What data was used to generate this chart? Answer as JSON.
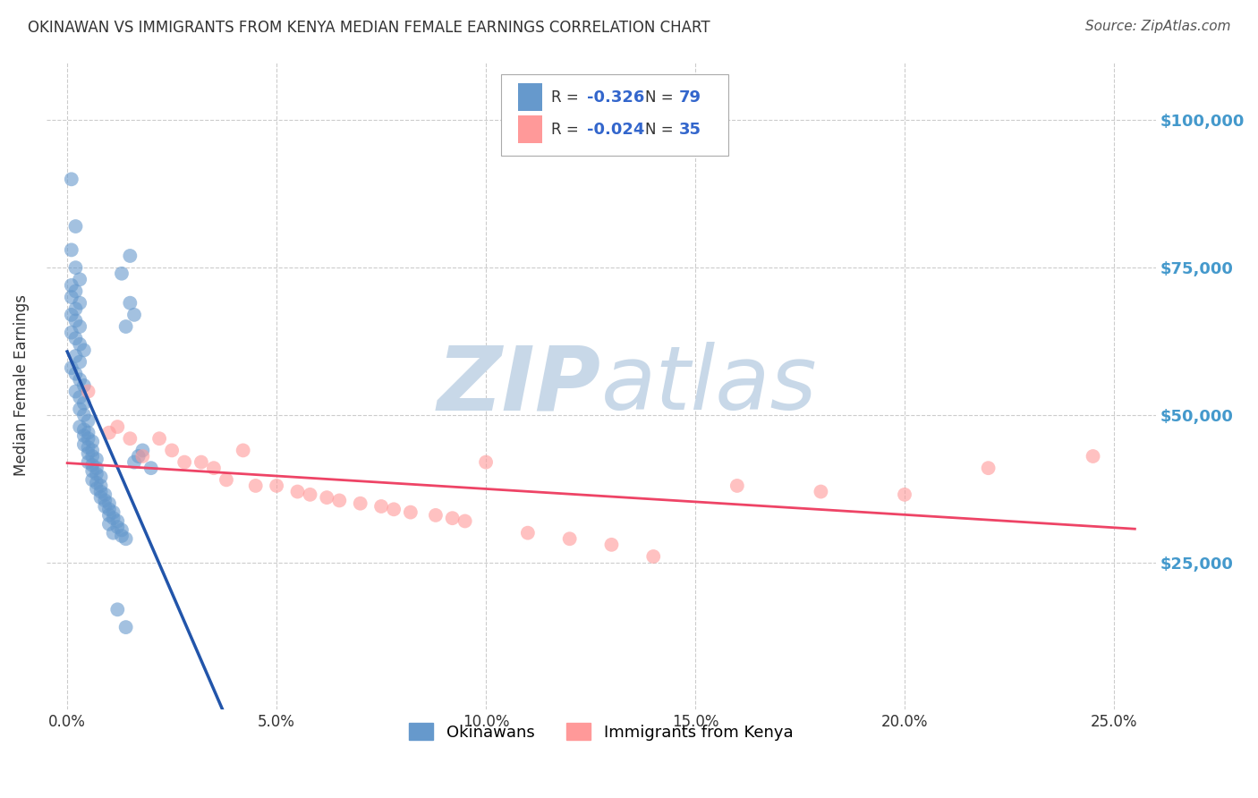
{
  "title": "OKINAWAN VS IMMIGRANTS FROM KENYA MEDIAN FEMALE EARNINGS CORRELATION CHART",
  "source": "Source: ZipAtlas.com",
  "ylabel": "Median Female Earnings",
  "xlabel_ticks": [
    "0.0%",
    "5.0%",
    "10.0%",
    "15.0%",
    "20.0%",
    "25.0%"
  ],
  "xlabel_vals": [
    0.0,
    0.05,
    0.1,
    0.15,
    0.2,
    0.25
  ],
  "ytick_labels": [
    "$25,000",
    "$50,000",
    "$75,000",
    "$100,000"
  ],
  "ytick_vals": [
    25000,
    50000,
    75000,
    100000
  ],
  "ylim": [
    0,
    110000
  ],
  "xlim": [
    -0.005,
    0.26
  ],
  "legend_label1": "Okinawans",
  "legend_label2": "Immigrants from Kenya",
  "r1": "-0.326",
  "n1": "79",
  "r2": "-0.024",
  "n2": "35",
  "blue_color": "#6699cc",
  "pink_color": "#ff9999",
  "blue_line_color": "#2255aa",
  "pink_line_color": "#ee4466",
  "watermark_zip": "ZIP",
  "watermark_atlas": "atlas",
  "watermark_color": "#c8d8e8",
  "background_color": "#ffffff",
  "title_color": "#333333",
  "source_color": "#555555",
  "axis_label_color": "#333333",
  "ytick_color": "#4499cc",
  "xtick_color": "#333333",
  "grid_color": "#cccccc",
  "okinawan_x": [
    0.001,
    0.002,
    0.001,
    0.002,
    0.003,
    0.001,
    0.002,
    0.001,
    0.003,
    0.002,
    0.001,
    0.002,
    0.003,
    0.001,
    0.002,
    0.003,
    0.004,
    0.002,
    0.003,
    0.001,
    0.002,
    0.003,
    0.004,
    0.002,
    0.003,
    0.004,
    0.003,
    0.004,
    0.005,
    0.003,
    0.004,
    0.005,
    0.004,
    0.005,
    0.006,
    0.004,
    0.005,
    0.006,
    0.005,
    0.006,
    0.007,
    0.005,
    0.006,
    0.007,
    0.006,
    0.007,
    0.008,
    0.006,
    0.007,
    0.008,
    0.007,
    0.008,
    0.009,
    0.008,
    0.009,
    0.01,
    0.009,
    0.01,
    0.011,
    0.01,
    0.011,
    0.012,
    0.01,
    0.012,
    0.013,
    0.011,
    0.013,
    0.014,
    0.012,
    0.014,
    0.015,
    0.013,
    0.015,
    0.016,
    0.014,
    0.017,
    0.016,
    0.018,
    0.02
  ],
  "okinawan_y": [
    90000,
    82000,
    78000,
    75000,
    73000,
    72000,
    71000,
    70000,
    69000,
    68000,
    67000,
    66000,
    65000,
    64000,
    63000,
    62000,
    61000,
    60000,
    59000,
    58000,
    57000,
    56000,
    55000,
    54000,
    53000,
    52000,
    51000,
    50000,
    49000,
    48000,
    47500,
    47000,
    46500,
    46000,
    45500,
    45000,
    44500,
    44000,
    43500,
    43000,
    42500,
    42000,
    41500,
    41000,
    40500,
    40000,
    39500,
    39000,
    38500,
    38000,
    37500,
    37000,
    36500,
    36000,
    35500,
    35000,
    34500,
    34000,
    33500,
    33000,
    32500,
    32000,
    31500,
    31000,
    30500,
    30000,
    29500,
    29000,
    17000,
    14000,
    77000,
    74000,
    69000,
    67000,
    65000,
    43000,
    42000,
    44000,
    41000
  ],
  "kenya_x": [
    0.005,
    0.01,
    0.015,
    0.012,
    0.018,
    0.022,
    0.025,
    0.028,
    0.032,
    0.035,
    0.038,
    0.042,
    0.045,
    0.05,
    0.055,
    0.058,
    0.062,
    0.065,
    0.07,
    0.075,
    0.078,
    0.082,
    0.088,
    0.092,
    0.095,
    0.1,
    0.11,
    0.12,
    0.13,
    0.14,
    0.16,
    0.18,
    0.2,
    0.22,
    0.245
  ],
  "kenya_y": [
    54000,
    47000,
    46000,
    48000,
    43000,
    46000,
    44000,
    42000,
    42000,
    41000,
    39000,
    44000,
    38000,
    38000,
    37000,
    36500,
    36000,
    35500,
    35000,
    34500,
    34000,
    33500,
    33000,
    32500,
    32000,
    42000,
    30000,
    29000,
    28000,
    26000,
    38000,
    37000,
    36500,
    41000,
    43000
  ]
}
